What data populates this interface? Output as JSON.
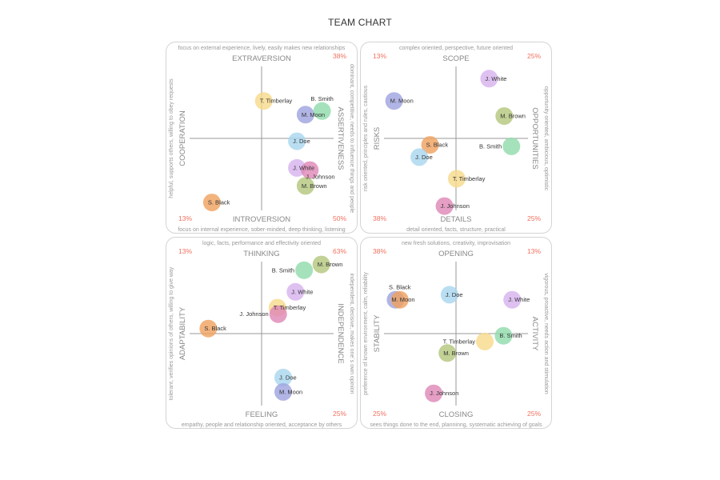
{
  "title": "TEAM CHART",
  "colors": {
    "T. Timberlay": "#f6d98a",
    "B. Smith": "#8edbaa",
    "M. Moon": "#9ea2df",
    "J. Doe": "#a8d6ef",
    "J. White": "#d6b1ee",
    "J. Johnson": "#de86b5",
    "M. Brown": "#b3c67a",
    "S. Black": "#f0a05c",
    "percent": "#f0705e"
  },
  "chart_data": [
    {
      "type": "scatter",
      "xlim": [
        -1,
        1
      ],
      "ylim": [
        -1,
        1
      ],
      "top": "EXTRAVERSION",
      "top_desc": "focus on external experience, lively, easily makes new relationships",
      "bottom": "INTROVERSION",
      "bottom_desc": "focus on internal experience, sober-minded, deep thinking, listening",
      "left": "COOPERATION",
      "left_desc": "helpful, supports others, willing to obey requests",
      "right": "ASSERTIVENESS",
      "right_desc": "dominant, competitive, needs to influence things and people",
      "corners": {
        "tl": "",
        "tr": "38%",
        "bl": "13%",
        "br": "50%"
      },
      "points": [
        {
          "name": "T. Timberlay",
          "x": 0.03,
          "y": 0.52
        },
        {
          "name": "M. Moon",
          "x": 0.61,
          "y": 0.33
        },
        {
          "name": "B. Smith",
          "x": 0.84,
          "y": 0.38
        },
        {
          "name": "J. Doe",
          "x": 0.49,
          "y": -0.04
        },
        {
          "name": "J. White",
          "x": 0.49,
          "y": -0.41
        },
        {
          "name": "J. Johnson",
          "x": 0.67,
          "y": -0.44
        },
        {
          "name": "M. Brown",
          "x": 0.61,
          "y": -0.66
        },
        {
          "name": "S. Black",
          "x": -0.69,
          "y": -0.89
        }
      ]
    },
    {
      "type": "scatter",
      "xlim": [
        -1,
        1
      ],
      "ylim": [
        -1,
        1
      ],
      "top": "SCOPE",
      "top_desc": "complex oriented, perspective, future oriented",
      "bottom": "DETAILS",
      "bottom_desc": "detail oriented, facts, structure, practical",
      "left": "RISKS",
      "left_desc": "risk oriented, principles and rules, cautious",
      "right": "OPPORTUNITIES",
      "right_desc": "opportunity oriented, ambicious, optimistic",
      "corners": {
        "tl": "13%",
        "tr": "25%",
        "bl": "38%",
        "br": "25%"
      },
      "points": [
        {
          "name": "J. White",
          "x": 0.46,
          "y": 0.83
        },
        {
          "name": "M. Moon",
          "x": -0.86,
          "y": 0.52
        },
        {
          "name": "M. Brown",
          "x": 0.67,
          "y": 0.31
        },
        {
          "name": "S. Black",
          "x": -0.36,
          "y": -0.09
        },
        {
          "name": "B. Smith",
          "x": 0.77,
          "y": -0.11
        },
        {
          "name": "J. Doe",
          "x": -0.51,
          "y": -0.26
        },
        {
          "name": "T. Timberlay",
          "x": 0.01,
          "y": -0.56
        },
        {
          "name": "J. Johnson",
          "x": -0.16,
          "y": -0.94
        }
      ]
    },
    {
      "type": "scatter",
      "xlim": [
        -1,
        1
      ],
      "ylim": [
        -1,
        1
      ],
      "top": "THINKING",
      "top_desc": "logic, facts, performance and effectivity oriented",
      "bottom": "FEELING",
      "bottom_desc": "empathy, people and relationship oriented, acceptance by others",
      "left": "ADAPTABILITY",
      "left_desc": "tolerant, verifies opinions of others, willing to give way",
      "right": "INDEPENDENCE",
      "right_desc": "independent, decisive, makes one´s own opinion",
      "corners": {
        "tl": "13%",
        "tr": "63%",
        "bl": "",
        "br": "25%"
      },
      "points": [
        {
          "name": "M. Brown",
          "x": 0.83,
          "y": 0.96
        },
        {
          "name": "B. Smith",
          "x": 0.59,
          "y": 0.88
        },
        {
          "name": "J. White",
          "x": 0.47,
          "y": 0.58
        },
        {
          "name": "T. Timberlay",
          "x": 0.22,
          "y": 0.36
        },
        {
          "name": "J. Johnson",
          "x": 0.23,
          "y": 0.27
        },
        {
          "name": "S. Black",
          "x": -0.74,
          "y": 0.07
        },
        {
          "name": "J. Doe",
          "x": 0.3,
          "y": -0.61
        },
        {
          "name": "M. Moon",
          "x": 0.3,
          "y": -0.81
        }
      ]
    },
    {
      "type": "scatter",
      "xlim": [
        -1,
        1
      ],
      "ylim": [
        -1,
        1
      ],
      "top": "OPENING",
      "top_desc": "new fresh solutions, creativity, improvisation",
      "bottom": "CLOSING",
      "bottom_desc": "sees things done to the end, planninng, systematic achieving of goals",
      "left": "STABILITY",
      "left_desc": "preference of known environment, calm, reliability",
      "right": "ACTIVITY",
      "right_desc": "vigorous, proactive, needs action and stimulation",
      "corners": {
        "tl": "38%",
        "tr": "13%",
        "bl": "25%",
        "br": "25%"
      },
      "points": [
        {
          "name": "J. Doe",
          "x": -0.09,
          "y": 0.54
        },
        {
          "name": "M. Moon",
          "x": -0.84,
          "y": 0.47
        },
        {
          "name": "S. Black",
          "x": -0.78,
          "y": 0.47
        },
        {
          "name": "J. White",
          "x": 0.78,
          "y": 0.47
        },
        {
          "name": "B. Smith",
          "x": 0.66,
          "y": -0.03
        },
        {
          "name": "T. Timberlay",
          "x": 0.4,
          "y": -0.11
        },
        {
          "name": "M. Brown",
          "x": -0.12,
          "y": -0.27
        },
        {
          "name": "J. Johnson",
          "x": -0.31,
          "y": -0.83
        }
      ]
    }
  ]
}
